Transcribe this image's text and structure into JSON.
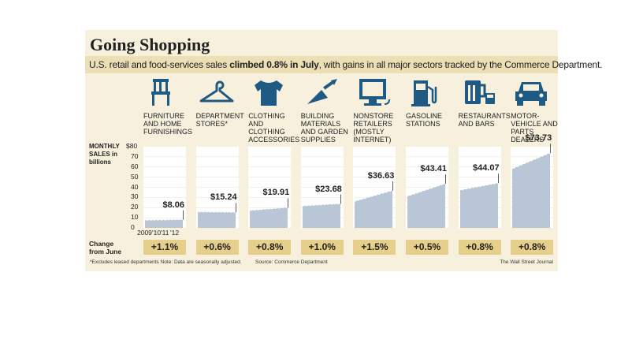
{
  "title": "Going Shopping",
  "subtitle_pre": "U.S. retail and food-services sales ",
  "subtitle_bold": "climbed 0.8% in July",
  "subtitle_post": ", with gains in all major sectors tracked by the Commerce Department.",
  "y_axis_label": "MONTHLY SALES in billions",
  "change_label": "Change from June",
  "footnote": "*Excludes leased departments   Note: Data are seasonally adjusted.",
  "source": "Source: Commerce Department",
  "credit": "The Wall Street Journal",
  "colors": {
    "background": "#f6f0dc",
    "subtitle_band": "#ecdfb6",
    "bars": "#b9c6d6",
    "icon": "#1f5a85",
    "change_box": "#e6cf8a"
  },
  "chart_data": {
    "type": "area",
    "ylim": [
      0,
      80
    ],
    "yticks": [
      "$80",
      "70",
      "60",
      "50",
      "40",
      "30",
      "20",
      "10",
      "0"
    ],
    "xticks": [
      "2009",
      "'10",
      "'11",
      "'12"
    ],
    "series": [
      {
        "name": "FURNITURE AND HOME FURNISHINGS",
        "icon": "chair-icon",
        "value_label": "$8.06",
        "change": "+1.1%",
        "start": 7.4,
        "end": 8.06
      },
      {
        "name": "DEPARTMENT STORES*",
        "icon": "hanger-icon",
        "value_label": "$15.24",
        "change": "+0.6%",
        "start": 15.6,
        "end": 15.24
      },
      {
        "name": "CLOTHING AND CLOTHING ACCESSORIES",
        "icon": "tshirt-icon",
        "value_label": "$19.91",
        "change": "+0.8%",
        "start": 17.0,
        "end": 19.91
      },
      {
        "name": "BUILDING MATERIALS AND GARDEN SUPPLIES",
        "icon": "trowel-icon",
        "value_label": "$23.68",
        "change": "+1.0%",
        "start": 21.5,
        "end": 23.68
      },
      {
        "name": "NONSTORE RETAILERS (MOSTLY INTERNET)",
        "icon": "computer-icon",
        "value_label": "$36.63",
        "change": "+1.5%",
        "start": 26.0,
        "end": 36.63
      },
      {
        "name": "GASOLINE STATIONS",
        "icon": "gas-pump-icon",
        "value_label": "$43.41",
        "change": "+0.5%",
        "start": 31.0,
        "end": 43.41
      },
      {
        "name": "RESTAURANTS AND BARS",
        "icon": "beer-mug-icon",
        "value_label": "$44.07",
        "change": "+0.8%",
        "start": 37.0,
        "end": 44.07
      },
      {
        "name": "MOTOR-VEHICLE AND PARTS DEALERS",
        "icon": "car-icon",
        "value_label": "$73.73",
        "change": "+0.8%",
        "start": 58.0,
        "end": 73.73
      }
    ]
  }
}
